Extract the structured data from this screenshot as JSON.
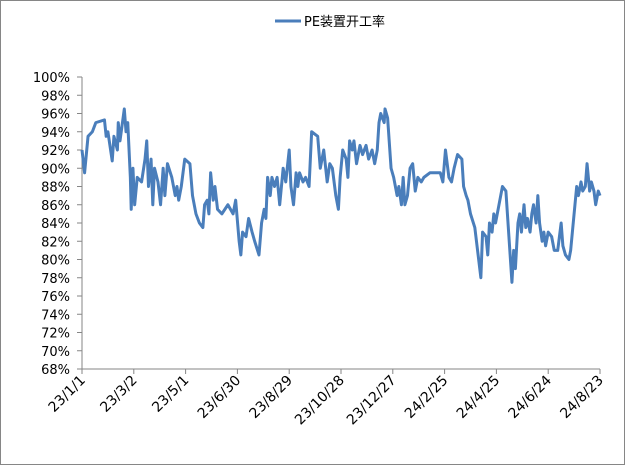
{
  "chart_data": {
    "type": "line",
    "x": [
      "23/1/1",
      "23/1/4",
      "23/1/8",
      "23/1/13",
      "23/1/17",
      "23/1/27",
      "23/1/29",
      "23/1/31",
      "23/2/5",
      "23/2/7",
      "23/2/11",
      "23/2/12",
      "23/2/14",
      "23/2/19",
      "23/2/21",
      "23/2/23",
      "23/2/26",
      "23/2/27",
      "23/3/1",
      "23/3/3",
      "23/3/6",
      "23/3/11",
      "23/3/15",
      "23/3/17",
      "23/3/19",
      "23/3/22",
      "23/3/24",
      "23/3/26",
      "23/3/30",
      "23/4/2",
      "23/4/5",
      "23/4/7",
      "23/4/10",
      "23/4/15",
      "23/4/19",
      "23/4/21",
      "23/4/23",
      "23/4/26",
      "23/4/30",
      "23/5/6",
      "23/5/9",
      "23/5/13",
      "23/5/17",
      "23/5/21",
      "23/5/23",
      "23/5/26",
      "23/5/28",
      "23/5/30",
      "23/6/2",
      "23/6/4",
      "23/6/7",
      "23/6/12",
      "23/6/19",
      "23/6/25",
      "23/6/28",
      "23/7/2",
      "23/7/4",
      "23/7/6",
      "23/7/10",
      "23/7/13",
      "23/7/17",
      "23/7/20",
      "23/7/25",
      "23/7/28",
      "23/7/31",
      "23/8/2",
      "23/8/4",
      "23/8/7",
      "23/8/9",
      "23/8/12",
      "23/8/15",
      "23/8/18",
      "23/8/22",
      "23/8/25",
      "23/8/29",
      "23/8/31",
      "23/9/3",
      "23/9/6",
      "23/9/8",
      "23/9/10",
      "23/9/14",
      "23/9/17",
      "23/9/21",
      "23/9/24",
      "23/10/1",
      "23/10/4",
      "23/10/8",
      "23/10/12",
      "23/10/15",
      "23/10/18",
      "23/10/22",
      "23/10/25",
      "23/10/27",
      "23/10/30",
      "23/11/3",
      "23/11/5",
      "23/11/7",
      "23/11/10",
      "23/11/12",
      "23/11/15",
      "23/11/19",
      "23/11/22",
      "23/11/26",
      "23/11/29",
      "23/12/3",
      "23/12/6",
      "23/12/9",
      "23/12/11",
      "23/12/13",
      "23/12/17",
      "23/12/18",
      "23/12/21",
      "23/12/25",
      "23/12/28",
      "24/1/1",
      "24/1/3",
      "24/1/6",
      "24/1/8",
      "24/1/10",
      "24/1/13",
      "24/1/16",
      "24/1/19",
      "24/1/22",
      "24/1/25",
      "24/1/29",
      "24/2/1",
      "24/2/8",
      "24/2/20",
      "24/2/23",
      "24/2/26",
      "24/3/1",
      "24/3/4",
      "24/3/7",
      "24/3/11",
      "24/3/16",
      "24/3/18",
      "24/3/21",
      "24/3/23",
      "24/3/26",
      "24/3/31",
      "24/4/7",
      "24/4/9",
      "24/4/13",
      "24/4/15",
      "24/4/17",
      "24/4/20",
      "24/4/22",
      "24/4/24",
      "24/4/28",
      "24/5/2",
      "24/5/6",
      "24/5/13",
      "24/5/15",
      "24/5/17",
      "24/5/20",
      "24/5/22",
      "24/5/24",
      "24/5/27",
      "24/5/29",
      "24/5/31",
      "24/6/3",
      "24/6/5",
      "24/6/7",
      "24/6/10",
      "24/6/12",
      "24/6/14",
      "24/6/17",
      "24/6/19",
      "24/6/21",
      "24/6/24",
      "24/6/28",
      "24/7/1",
      "24/7/5",
      "24/7/9",
      "24/7/11",
      "24/7/14",
      "24/7/18",
      "24/7/20",
      "24/7/22",
      "24/7/25",
      "24/7/27",
      "24/7/29",
      "24/8/1",
      "24/8/3",
      "24/8/6",
      "24/8/8",
      "24/8/11",
      "24/8/13",
      "24/8/16",
      "24/8/18",
      "24/8/21",
      "24/8/23"
    ],
    "series": [
      {
        "name": "PE装置开工率",
        "color": "#4a7ebb",
        "values": [
          92,
          89.5,
          93.5,
          94,
          95,
          95.3,
          93.5,
          94,
          90.8,
          93.5,
          92,
          95,
          93,
          96.5,
          94,
          95,
          89,
          85.5,
          90,
          86,
          89,
          88.5,
          91,
          93,
          88,
          91,
          86,
          90,
          88.5,
          86,
          90,
          87,
          90.5,
          89,
          87,
          88,
          86.5,
          88,
          91,
          90.5,
          87,
          85,
          84,
          83.5,
          86,
          86.5,
          85,
          89.5,
          86.5,
          88,
          85.5,
          85,
          86,
          85,
          86.5,
          82,
          80.5,
          83,
          82.5,
          84.5,
          83,
          82,
          80.5,
          84,
          85.5,
          84.5,
          89,
          87,
          89,
          88,
          89,
          86,
          90,
          88.5,
          92,
          88,
          86,
          89.5,
          88,
          89.5,
          88.5,
          89,
          88,
          94,
          93.5,
          90,
          92,
          88.5,
          90.5,
          90,
          87,
          85.5,
          89,
          92,
          91,
          89,
          93,
          92,
          93,
          90.5,
          92.5,
          91.5,
          92.5,
          91,
          92,
          90.5,
          92,
          95,
          96,
          95,
          96.5,
          95.5,
          90,
          89,
          87,
          88,
          86,
          89,
          86,
          87,
          90,
          90.5,
          87.5,
          89,
          88.5,
          89,
          89.5,
          89.5,
          88.5,
          92,
          89,
          88.5,
          90,
          91.5,
          91,
          88,
          87,
          86.5,
          85,
          83.5,
          78,
          83,
          82.5,
          80.5,
          84,
          83,
          85,
          84,
          86,
          88,
          87.5,
          77.5,
          81,
          79,
          84,
          85,
          83,
          86,
          83.5,
          84.5,
          83,
          85,
          86,
          84,
          87,
          84,
          82,
          83,
          81.5,
          83,
          82.5,
          81,
          81,
          84,
          81.5,
          80.5,
          80,
          81,
          83,
          86,
          88,
          87,
          88.5,
          87.5,
          88,
          90.5,
          87.5,
          88.5,
          87.5,
          86,
          87.5,
          87
        ]
      }
    ],
    "xlim": [
      "23/1/1",
      "24/8/23"
    ],
    "xticks": [
      "23/1/1",
      "23/3/2",
      "23/5/1",
      "23/6/30",
      "23/8/29",
      "23/10/28",
      "23/12/27",
      "24/2/25",
      "24/4/25",
      "24/6/24",
      "24/8/23"
    ],
    "ylim": [
      68,
      100
    ],
    "yticks": [
      {
        "value": 68,
        "label": "68%"
      },
      {
        "value": 70,
        "label": "70%"
      },
      {
        "value": 72,
        "label": "72%"
      },
      {
        "value": 74,
        "label": "74%"
      },
      {
        "value": 76,
        "label": "76%"
      },
      {
        "value": 78,
        "label": "78%"
      },
      {
        "value": 80,
        "label": "80%"
      },
      {
        "value": 82,
        "label": "82%"
      },
      {
        "value": 84,
        "label": "84%"
      },
      {
        "value": 86,
        "label": "86%"
      },
      {
        "value": 88,
        "label": "88%"
      },
      {
        "value": 90,
        "label": "90%"
      },
      {
        "value": 92,
        "label": "92%"
      },
      {
        "value": 94,
        "label": "94%"
      },
      {
        "value": 96,
        "label": "96%"
      },
      {
        "value": 98,
        "label": "98%"
      },
      {
        "value": 100,
        "label": "100%"
      }
    ],
    "grid": false,
    "legend": "top"
  }
}
